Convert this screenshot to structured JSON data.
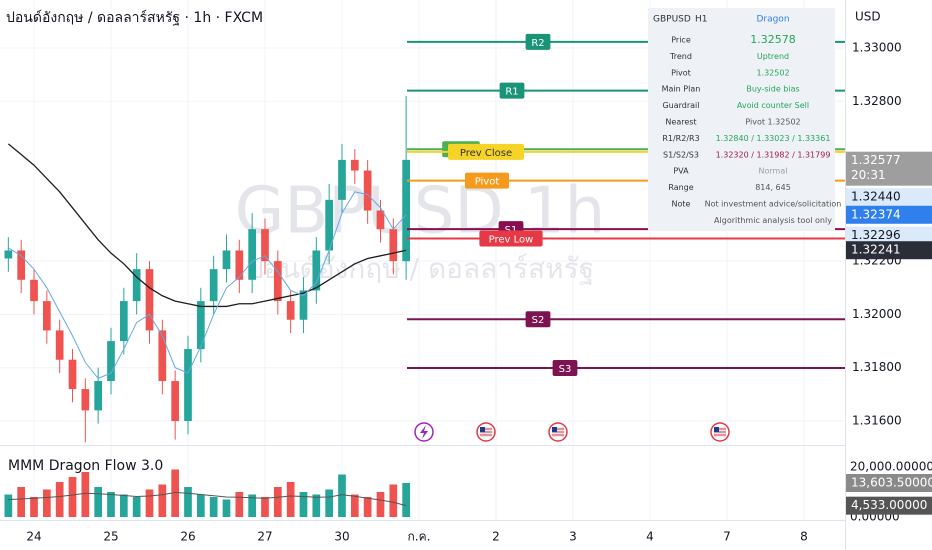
{
  "chart_data": {
    "type": "candlestick",
    "title": "ปอนด์อังกฤษ / ดอลลาร์สหรัฐ · 1h · FXCM",
    "watermark": "GBPUSD 1h",
    "watermark_subtitle": "ปอนด์อังกฤษ / ดอลลาร์สหรัฐ",
    "currency": "USD",
    "x": [
      -2,
      -1,
      0,
      1,
      2,
      3,
      4,
      5,
      6,
      7,
      8,
      9,
      10,
      11,
      12,
      13,
      14,
      15,
      16,
      17,
      18,
      19,
      20,
      21,
      22,
      23,
      24,
      25,
      26,
      27,
      28,
      29
    ],
    "xlim": [
      -2.65,
      63.2
    ],
    "xticks": [
      {
        "value": 0,
        "label": "24"
      },
      {
        "value": 6,
        "label": "25"
      },
      {
        "value": 12,
        "label": "26"
      },
      {
        "value": 18,
        "label": "27"
      },
      {
        "value": 24,
        "label": "30"
      },
      {
        "value": 30,
        "label": "ก.ค."
      },
      {
        "value": 36,
        "label": "2"
      },
      {
        "value": 42,
        "label": "3"
      },
      {
        "value": 48,
        "label": "4"
      },
      {
        "value": 54,
        "label": "7"
      },
      {
        "value": 60,
        "label": "8"
      }
    ],
    "open": [
      1.3221,
      1.3224,
      1.3213,
      1.3205,
      1.3194,
      1.3183,
      1.3172,
      1.3164,
      1.3175,
      1.319,
      1.3205,
      1.3217,
      1.3194,
      1.3175,
      1.316,
      1.3187,
      1.3205,
      1.3217,
      1.3224,
      1.3213,
      1.3232,
      1.322,
      1.3205,
      1.3198,
      1.3209,
      1.3224,
      1.3243,
      1.3258,
      1.3254,
      1.3239,
      1.3232,
      1.322
    ],
    "high": [
      1.3229,
      1.3228,
      1.3217,
      1.3209,
      1.3198,
      1.3187,
      1.3176,
      1.318,
      1.3195,
      1.321,
      1.3223,
      1.322,
      1.3198,
      1.3179,
      1.3192,
      1.321,
      1.3222,
      1.323,
      1.3228,
      1.3238,
      1.3236,
      1.3224,
      1.3209,
      1.3214,
      1.3229,
      1.3249,
      1.3264,
      1.3262,
      1.3258,
      1.3243,
      1.3236,
      1.3282
    ],
    "low": [
      1.3216,
      1.3208,
      1.32,
      1.3189,
      1.3178,
      1.3167,
      1.3152,
      1.3159,
      1.317,
      1.3185,
      1.32,
      1.3189,
      1.317,
      1.3153,
      1.3155,
      1.3182,
      1.32,
      1.3212,
      1.3208,
      1.3208,
      1.3215,
      1.32,
      1.3193,
      1.3193,
      1.3204,
      1.3219,
      1.3238,
      1.3249,
      1.3234,
      1.3227,
      1.3215,
      1.3213
    ],
    "close": [
      1.3224,
      1.3213,
      1.3205,
      1.3194,
      1.3183,
      1.3172,
      1.3164,
      1.3175,
      1.319,
      1.3205,
      1.3217,
      1.3194,
      1.3175,
      1.316,
      1.3187,
      1.3205,
      1.3217,
      1.3224,
      1.3213,
      1.3232,
      1.322,
      1.3205,
      1.3198,
      1.3209,
      1.3224,
      1.3243,
      1.3258,
      1.3254,
      1.3239,
      1.3232,
      1.322,
      1.3258
    ],
    "up_color": "#26a69a",
    "down_color": "#ef5350",
    "ylim": [
      1.3151,
      1.3318
    ],
    "yticks": [
      {
        "value": 1.33,
        "label": "1.33000"
      },
      {
        "value": 1.328,
        "label": "1.32800"
      },
      {
        "value": 1.322,
        "label": "1.32200"
      },
      {
        "value": 1.32,
        "label": "1.32000"
      },
      {
        "value": 1.318,
        "label": "1.31800"
      },
      {
        "value": 1.316,
        "label": "1.31600"
      }
    ],
    "grid": true,
    "lines": [
      {
        "color": "#1e1e1e",
        "values": [
          1.3264,
          1.326,
          1.3256,
          1.3251,
          1.3246,
          1.324,
          1.3234,
          1.3228,
          1.3223,
          1.3219,
          1.3214,
          1.321,
          1.3207,
          1.3205,
          1.3204,
          1.3203,
          1.3203,
          1.3203,
          1.3204,
          1.3204,
          1.3205,
          1.3206,
          1.3207,
          1.3208,
          1.321,
          1.3213,
          1.3216,
          1.3219,
          1.3221,
          1.3222,
          1.3223,
          1.32241
        ]
      },
      {
        "color": "#64a8e8",
        "values": [
          1.3225,
          1.3222,
          1.3217,
          1.321,
          1.3201,
          1.3192,
          1.3182,
          1.3176,
          1.3178,
          1.3187,
          1.3197,
          1.32,
          1.3192,
          1.318,
          1.3178,
          1.3188,
          1.32,
          1.321,
          1.3214,
          1.322,
          1.3222,
          1.3216,
          1.3209,
          1.3207,
          1.3212,
          1.3224,
          1.3238,
          1.3246,
          1.3245,
          1.324,
          1.3232,
          1.32374
        ]
      }
    ],
    "levels": [
      {
        "name": "R2",
        "value": 1.33023,
        "color": "#1a9477"
      },
      {
        "name": "R1",
        "value": 1.3284,
        "color": "#1a9477"
      },
      {
        "name": "Prev",
        "value": 1.3262,
        "color": "#4caf50"
      },
      {
        "name": "Prev Close",
        "value": 1.3261,
        "color": "#f5d327"
      },
      {
        "name": "Pivot",
        "value": 1.32502,
        "color": "#f59a1b"
      },
      {
        "name": "S1",
        "value": 1.3232,
        "color": "#880e4f"
      },
      {
        "name": "Prev Low",
        "value": 1.32285,
        "color": "#e53945"
      },
      {
        "name": "S2",
        "value": 1.31982,
        "color": "#7b1450"
      },
      {
        "name": "S3",
        "value": 1.31799,
        "color": "#7b1450"
      }
    ],
    "badges": [
      {
        "value": 1.32577,
        "label": "1.32577",
        "color": "#9e9e9e"
      },
      {
        "value": 1.3244,
        "label": "1.32440",
        "color": "#dbeafb"
      },
      {
        "value": 1.32374,
        "label": "1.32374",
        "color": "#2f80ed"
      },
      {
        "value": 1.32296,
        "label": "1.32296",
        "color": "#dbeafb"
      },
      {
        "value": 1.32241,
        "label": "1.32241",
        "color": "#2a2e39"
      }
    ],
    "countdown": "20:31",
    "volume": {
      "title": "MMM Dragon Flow 3.0",
      "values": [
        9000,
        12000,
        8000,
        11000,
        14000,
        16000,
        18000,
        12000,
        10000,
        9000,
        8000,
        11000,
        13000,
        19000,
        12000,
        9000,
        8000,
        7000,
        10000,
        9000,
        8000,
        12000,
        14000,
        10000,
        9000,
        11000,
        17000,
        9000,
        8000,
        10000,
        13000,
        13603.5
      ],
      "avg_values": [
        7000,
        7200,
        7500,
        7800,
        8200,
        8800,
        9500,
        9300,
        9000,
        8600,
        8200,
        8400,
        8900,
        9800,
        9500,
        9000,
        8500,
        8000,
        7900,
        7700,
        7500,
        7900,
        8400,
        8200,
        7900,
        8000,
        8900,
        8300,
        7500,
        6800,
        5900,
        4533
      ],
      "ylim": [
        -1200,
        28800
      ],
      "yticks": [
        {
          "value": 20000,
          "label": "20,000.00000"
        },
        {
          "value": 0,
          "label": "0.00000"
        }
      ],
      "badges": [
        {
          "value": 13603.5,
          "label": "13,603.50000",
          "color": "#8a8a8a"
        },
        {
          "value": 4533,
          "label": "4,533.00000",
          "color": "#555555"
        }
      ]
    },
    "panel": {
      "symbol": "GBPUSD",
      "timeframe": "H1",
      "name": "Dragon",
      "rows": [
        {
          "label": "Price",
          "value": "1.32578",
          "color": "#26a65b"
        },
        {
          "label": "Trend",
          "value": "Uptrend",
          "color": "#26a65b"
        },
        {
          "label": "Pivot",
          "value": "1.32502",
          "color": "#26a65b"
        },
        {
          "label": "Main Plan",
          "value": "Buy-side bias",
          "color": "#26a65b"
        },
        {
          "label": "Guardrail",
          "value": "Avoid counter Sell",
          "color": "#26a65b"
        },
        {
          "label": "Nearest",
          "value": "Pivot 1.32502",
          "color": "#555555"
        },
        {
          "label": "R1/R2/R3",
          "value": "1.32840 / 1.33023 / 1.33361",
          "color": "#26a65b"
        },
        {
          "label": "S1/S2/S3",
          "value": "1.32320 / 1.31982 / 1.31799",
          "color": "#9c1c4b"
        },
        {
          "label": "PVA",
          "value": "Normal",
          "color": "#9e9e9e"
        },
        {
          "label": "Range",
          "value": "814, 645",
          "color": "#555555"
        },
        {
          "label": "Note",
          "value": "Not investment advice/solicitation",
          "color": "#555555"
        }
      ],
      "footer": "Algorithmic analysis tool only"
    }
  }
}
